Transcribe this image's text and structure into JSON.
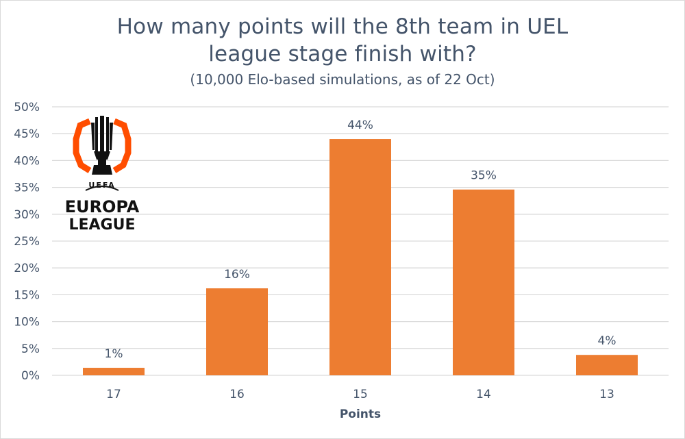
{
  "chart_data": {
    "type": "bar",
    "title_line1": "How many points will the 8th team in UEL",
    "title_line2": "league stage finish with?",
    "subtitle": "(10,000 Elo-based simulations, as of 22 Oct)",
    "xlabel": "Points",
    "ylabel": "",
    "categories": [
      "17",
      "16",
      "15",
      "14",
      "13"
    ],
    "values": [
      1.4,
      16.2,
      44.0,
      34.6,
      3.8
    ],
    "data_labels": [
      "1%",
      "16%",
      "44%",
      "35%",
      "4%"
    ],
    "ylim": [
      0,
      50
    ],
    "yticks": [
      0,
      5,
      10,
      15,
      20,
      25,
      30,
      35,
      40,
      45,
      50
    ],
    "ytick_labels": [
      "0%",
      "5%",
      "10%",
      "15%",
      "20%",
      "25%",
      "30%",
      "35%",
      "40%",
      "45%",
      "50%"
    ],
    "grid": true,
    "legend": "none",
    "bar_color": "#ed7d31",
    "grid_color": "#d9d9d9",
    "text_color": "#44546a"
  },
  "logo": {
    "line1": "UEFA",
    "line2": "EUROPA",
    "line3": "LEAGUE",
    "accent_color": "#ff4d00"
  }
}
